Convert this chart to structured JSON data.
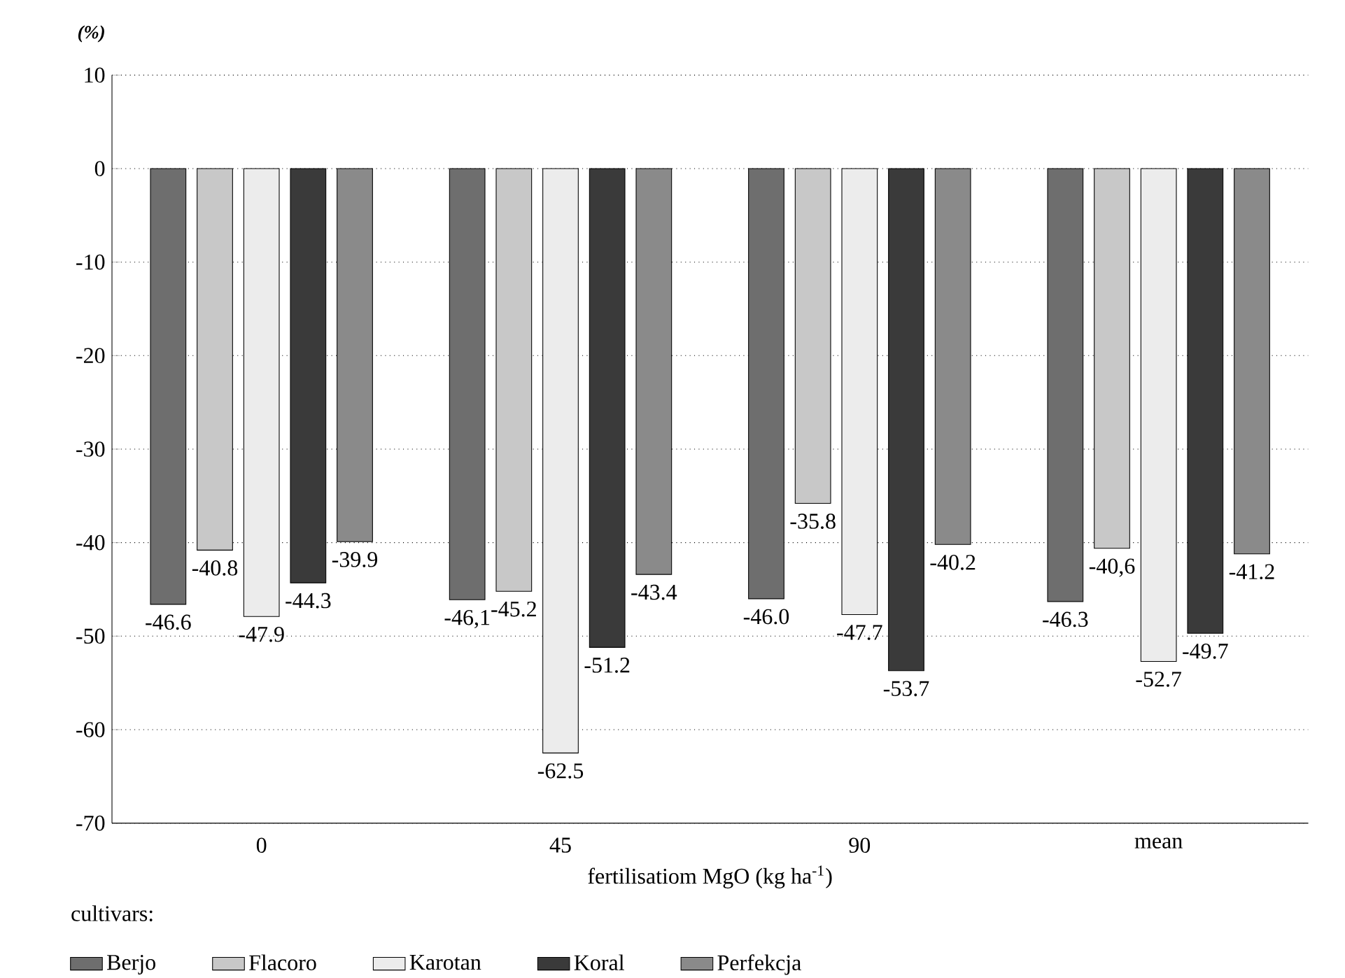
{
  "chart_data": {
    "type": "bar",
    "ylabel": "(%)",
    "xlabel": "fertilisatiom MgO (kg ha$^{-1}$)",
    "legend_title": "cultivars:",
    "categories": [
      "0",
      "45",
      "90",
      "mean"
    ],
    "ylim": [
      -70,
      10
    ],
    "yticks": [
      -70,
      -60,
      -50,
      -40,
      -30,
      -20,
      -10,
      0,
      10
    ],
    "grid": "y",
    "legend": "bottom",
    "series": [
      {
        "name": "Berjo",
        "color": "#6e6e6e",
        "values": [
          -46.6,
          -46.1,
          -46.0,
          -46.3
        ],
        "value_labels": [
          "-46.6",
          "-46,1",
          "-46.0",
          "-46.3"
        ]
      },
      {
        "name": "Flacoro",
        "color": "#c8c8c8",
        "values": [
          -40.8,
          -45.2,
          -35.8,
          -40.6
        ],
        "value_labels": [
          "-40.8",
          "-45.2",
          "-35.8",
          "-40,6"
        ]
      },
      {
        "name": "Karotan",
        "color": "#ececec",
        "values": [
          -47.9,
          -62.5,
          -47.7,
          -52.7
        ],
        "value_labels": [
          "-47.9",
          "-62.5",
          "-47.7",
          "-52.7"
        ]
      },
      {
        "name": "Koral",
        "color": "#3a3a3a",
        "values": [
          -44.3,
          -51.2,
          -53.7,
          -49.7
        ],
        "value_labels": [
          "-44.3",
          "-51.2",
          "-53.7",
          "-49.7"
        ]
      },
      {
        "name": "Perfekcja",
        "color": "#8a8a8a",
        "values": [
          -39.9,
          -43.4,
          -40.2,
          -41.2
        ],
        "value_labels": [
          "-39.9",
          "-43.4",
          "-40.2",
          "-41.2"
        ]
      }
    ]
  }
}
